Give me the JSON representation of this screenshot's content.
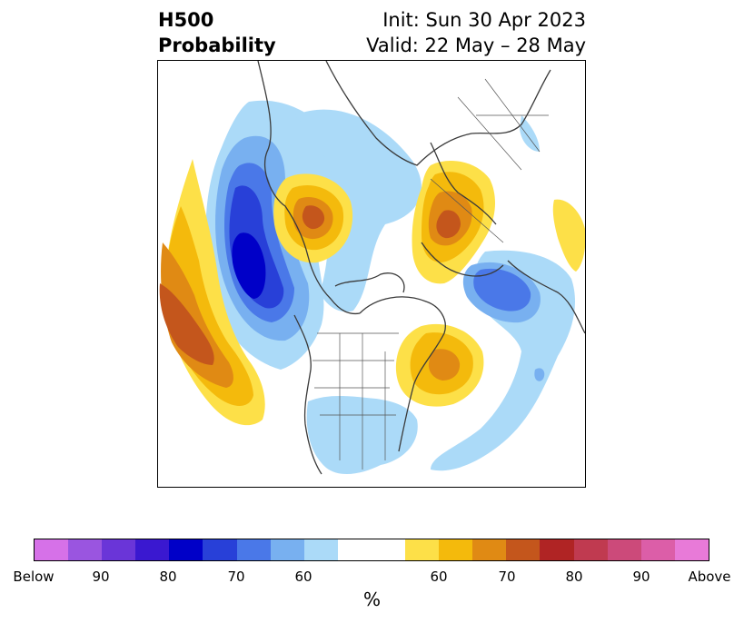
{
  "title": {
    "left_line1": "H500",
    "left_line2": "Probability",
    "right_line1": "Init: Sun 30 Apr 2023",
    "right_line2": "Valid: 22 May – 28 May"
  },
  "colorbar": {
    "colors": [
      "#d671e8",
      "#9a55e0",
      "#6a35d8",
      "#3a18d0",
      "#0000c8",
      "#2840d8",
      "#4a78e8",
      "#78b0f0",
      "#abdaf8",
      "#ffffff",
      "#ffffff",
      "#fde048",
      "#f4ba0c",
      "#e08a14",
      "#c4561c",
      "#b02424",
      "#c03a50",
      "#cc4a7a",
      "#dc5ea8",
      "#e87ad8"
    ],
    "tick_labels": [
      "Below",
      "90",
      "80",
      "70",
      "60",
      "60",
      "70",
      "80",
      "90",
      "Above"
    ],
    "unit_label": "%"
  },
  "anomaly_colors": {
    "light_blue": "#abdaf8",
    "mid_blue": "#78b0f0",
    "blue": "#4a78e8",
    "dark_blue": "#2840d8",
    "deep_blue": "#0000c8",
    "yellow": "#fde048",
    "gold": "#f4ba0c",
    "orange": "#e08a14",
    "dark_orange": "#c4561c",
    "coastline": "#3a3a3a"
  }
}
